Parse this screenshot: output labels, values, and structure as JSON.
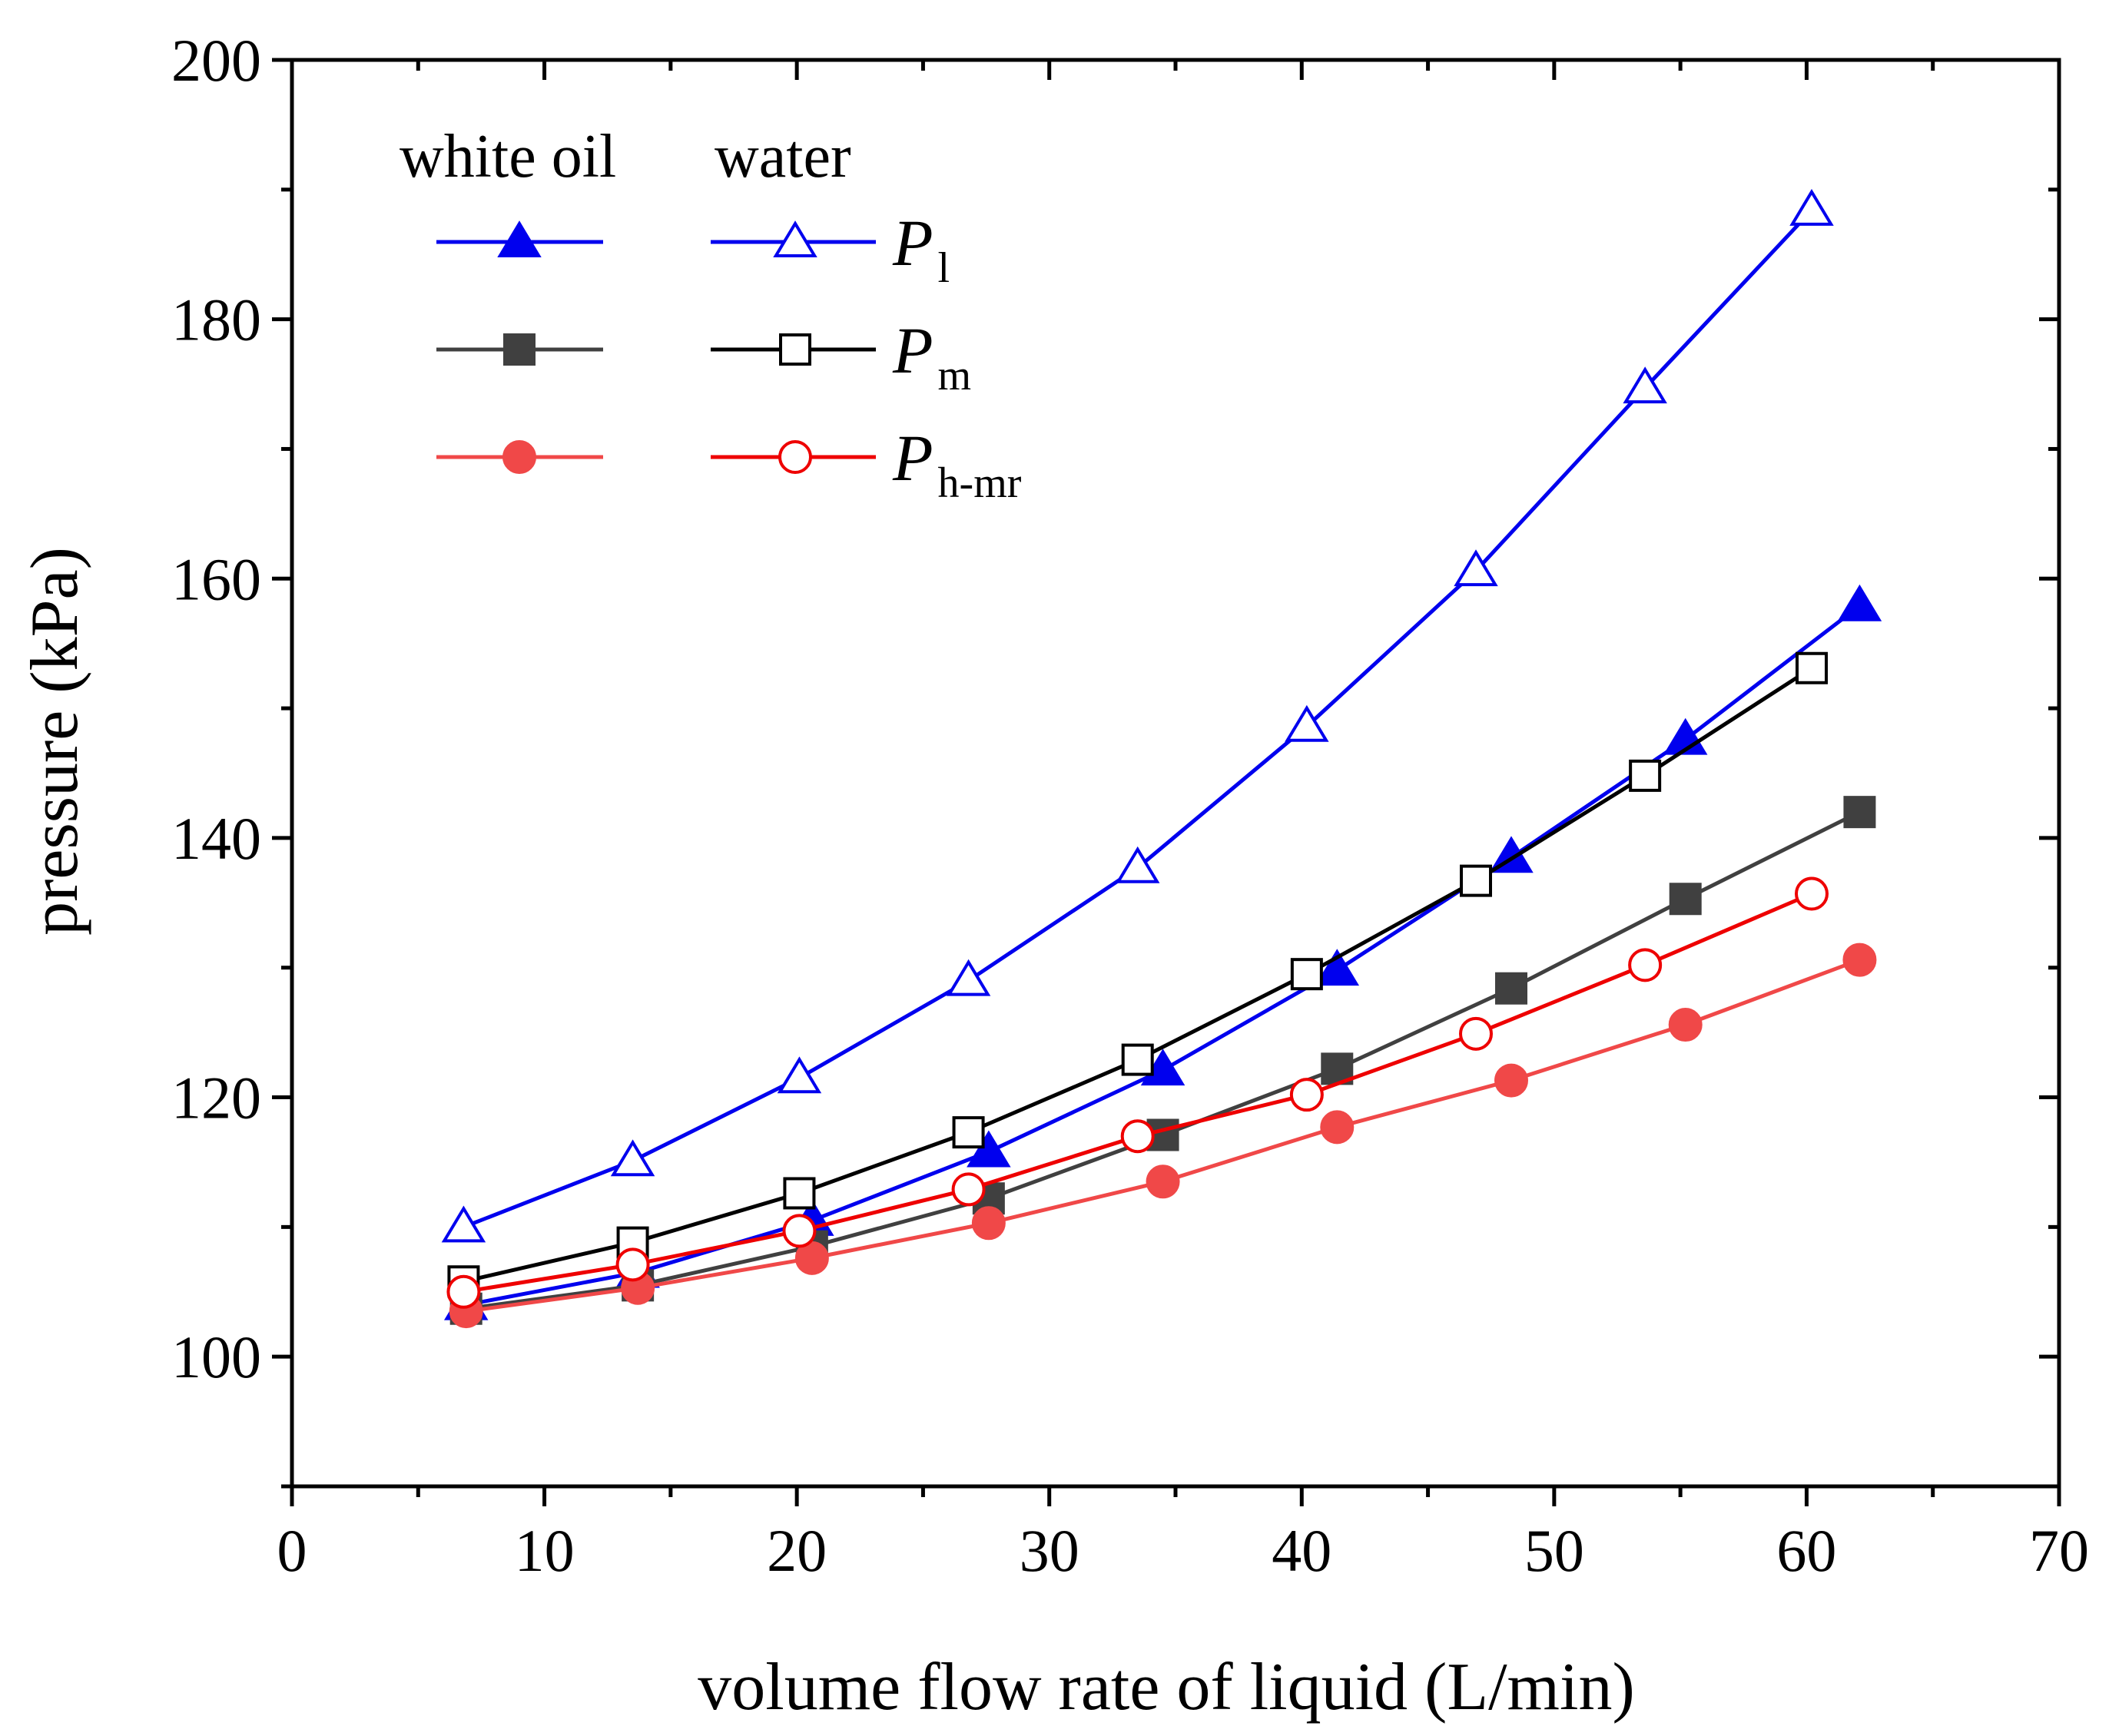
{
  "chart_data": {
    "type": "line",
    "xlabel": "volume flow rate of liquid (L/min)",
    "ylabel": "pressure (kPa)",
    "xlim": [
      0,
      70
    ],
    "ylim": [
      90,
      200
    ],
    "xticks": [
      "0",
      "10",
      "20",
      "30",
      "40",
      "50",
      "60",
      "70"
    ],
    "yticks": [
      "100",
      "120",
      "140",
      "160",
      "180",
      "200"
    ],
    "grid": false,
    "legend": {
      "position": "top-left",
      "column_headers": [
        "white oil",
        "water"
      ],
      "rows": [
        {
          "symbol": "P",
          "subscript": "l"
        },
        {
          "symbol": "P",
          "subscript": "m"
        },
        {
          "symbol": "P",
          "subscript": "h-mr"
        }
      ]
    },
    "series": [
      {
        "fluid": "white oil",
        "variable": "P_l",
        "color": "#0000ee",
        "marker": "triangle",
        "filled": true,
        "x": [
          6.9,
          13.7,
          20.6,
          27.6,
          34.5,
          41.4,
          48.3,
          55.2,
          62.1
        ],
        "y": [
          104.0,
          106.5,
          110.5,
          115.8,
          122.1,
          129.8,
          138.5,
          147.6,
          157.9
        ]
      },
      {
        "fluid": "white oil",
        "variable": "P_m",
        "color": "#404040",
        "marker": "square",
        "filled": true,
        "x": [
          6.9,
          13.7,
          20.6,
          27.6,
          34.5,
          41.4,
          48.3,
          55.2,
          62.1
        ],
        "y": [
          103.7,
          105.5,
          108.5,
          112.2,
          117.1,
          122.2,
          128.4,
          135.3,
          142.0
        ]
      },
      {
        "fluid": "white oil",
        "variable": "P_h-mr",
        "color": "#f04848",
        "marker": "circle",
        "filled": true,
        "x": [
          6.9,
          13.7,
          20.6,
          27.6,
          34.5,
          41.4,
          48.3,
          55.2,
          62.1
        ],
        "y": [
          103.5,
          105.3,
          107.6,
          110.3,
          113.5,
          117.7,
          121.3,
          125.6,
          130.6
        ]
      },
      {
        "fluid": "water",
        "variable": "P_l",
        "color": "#0000ee",
        "marker": "triangle",
        "filled": false,
        "x": [
          6.8,
          13.5,
          20.1,
          26.8,
          33.5,
          40.2,
          46.9,
          53.6,
          60.2
        ],
        "y": [
          110.0,
          115.1,
          121.5,
          129.0,
          137.7,
          148.6,
          160.6,
          174.7,
          188.4
        ]
      },
      {
        "fluid": "water",
        "variable": "P_m",
        "color": "#000000",
        "marker": "square",
        "filled": false,
        "x": [
          6.8,
          13.5,
          20.1,
          26.8,
          33.5,
          40.2,
          46.9,
          53.6,
          60.2
        ],
        "y": [
          105.8,
          108.8,
          112.6,
          117.3,
          122.9,
          129.5,
          136.7,
          144.8,
          153.1
        ]
      },
      {
        "fluid": "water",
        "variable": "P_h-mr",
        "color": "#ee0000",
        "marker": "circle",
        "filled": false,
        "x": [
          6.8,
          13.5,
          20.1,
          26.8,
          33.5,
          40.2,
          46.9,
          53.6,
          60.2
        ],
        "y": [
          105.0,
          107.1,
          109.7,
          112.9,
          117.0,
          120.2,
          124.9,
          130.2,
          135.7
        ]
      }
    ]
  }
}
